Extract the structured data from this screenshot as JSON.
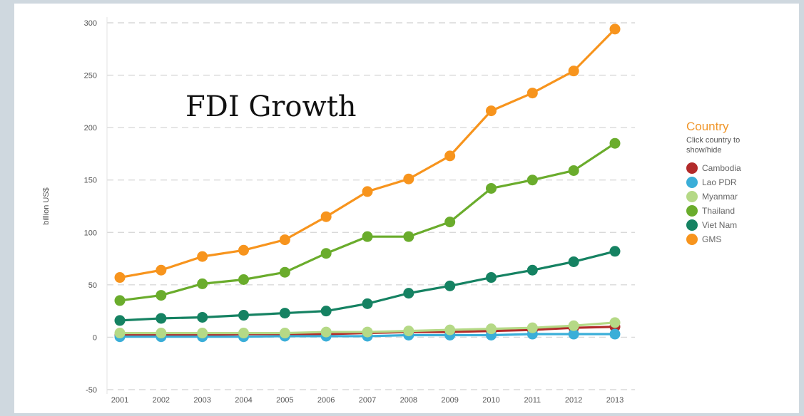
{
  "overlay_title": "FDI Growth",
  "legend": {
    "title": "Country",
    "hint": "Click country to show/hide"
  },
  "chart_data": {
    "type": "line",
    "title": "",
    "xlabel": "",
    "ylabel": "billion US$",
    "x": [
      2001,
      2002,
      2003,
      2004,
      2005,
      2006,
      2007,
      2008,
      2009,
      2010,
      2011,
      2012,
      2013
    ],
    "ylim": [
      -50,
      300
    ],
    "yticks": [
      -50,
      0,
      50,
      100,
      150,
      200,
      250,
      300
    ],
    "grid": true,
    "legend_position": "right",
    "series": [
      {
        "name": "Cambodia",
        "color": "#b22a2a",
        "values": [
          2,
          2,
          2,
          3,
          3,
          3,
          4,
          5,
          5,
          6,
          7,
          9,
          10
        ]
      },
      {
        "name": "Lao PDR",
        "color": "#3aaed8",
        "values": [
          0.5,
          0.5,
          0.5,
          0.5,
          1,
          1,
          1,
          2,
          2,
          2,
          3,
          3,
          3
        ]
      },
      {
        "name": "Myanmar",
        "color": "#b5d986",
        "values": [
          4,
          4,
          4,
          4,
          4,
          5,
          5,
          6,
          7,
          8,
          9,
          11,
          14
        ]
      },
      {
        "name": "Thailand",
        "color": "#6aac2c",
        "values": [
          35,
          40,
          51,
          55,
          62,
          80,
          96,
          96,
          110,
          142,
          150,
          159,
          185
        ]
      },
      {
        "name": "Viet Nam",
        "color": "#158262",
        "values": [
          16,
          18,
          19,
          21,
          23,
          25,
          32,
          42,
          49,
          57,
          64,
          72,
          82
        ]
      },
      {
        "name": "GMS",
        "color": "#f7941d",
        "values": [
          57,
          64,
          77,
          83,
          93,
          115,
          139,
          151,
          173,
          216,
          233,
          254,
          294
        ]
      }
    ]
  }
}
